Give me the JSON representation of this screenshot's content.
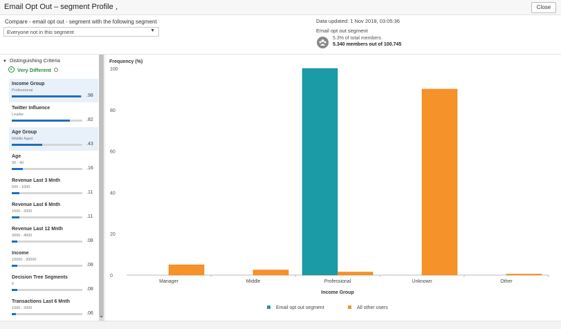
{
  "window": {
    "title": "Email Opt Out – segment Profile",
    "title_mark": ",",
    "close_label": "Close"
  },
  "compare": {
    "label": "Compare - email opt out - segment with the following segment",
    "selected": "Everyone not in this segment"
  },
  "segment_info": {
    "updated": "Data updated:  1 Nov 2018, 03:05:36",
    "name": "Email opt out segment",
    "icon": "group-icon",
    "pct_text": "5.3% of total members",
    "count_text": "5.340 members out of 100.745"
  },
  "criteria_panel": {
    "header": "Distinguishing Criteria",
    "very_different": "Very Different",
    "items": [
      {
        "name": "Income Group",
        "sub": "Professional",
        "score": ".98",
        "value": 0.98,
        "selected": true
      },
      {
        "name": "Twitter Influence",
        "sub": "Leader",
        "score": ".82",
        "value": 0.82,
        "selected": false
      },
      {
        "name": "Age Group",
        "sub": "Middle Aged",
        "score": ".43",
        "value": 0.43,
        "selected": true
      },
      {
        "name": "Age",
        "sub": "30 - 40",
        "score": ".16",
        "value": 0.16,
        "selected": false
      },
      {
        "name": "Revenue Last 3 Mnth",
        "sub": "500 - 1000",
        "score": ".11",
        "value": 0.11,
        "selected": false
      },
      {
        "name": "Revenue Last 6 Mnth",
        "sub": "1000 - 2000",
        "score": ".11",
        "value": 0.11,
        "selected": false
      },
      {
        "name": "Revenue Last 12 Mnth",
        "sub": "3000 - 4000",
        "score": ".08",
        "value": 0.08,
        "selected": false
      },
      {
        "name": "Income",
        "sub": "10000 - 30000",
        "score": ".08",
        "value": 0.08,
        "selected": false
      },
      {
        "name": "Decision Tree Segments",
        "sub": "6",
        "score": ".08",
        "value": 0.08,
        "selected": false
      },
      {
        "name": "Transactions Last 6 Mnth",
        "sub": "1000 - 2000",
        "score": ".06",
        "value": 0.06,
        "selected": false
      }
    ]
  },
  "chart_data": {
    "type": "bar",
    "ylabel": "Frequency (%)",
    "xlabel": "Income Group",
    "ylim": [
      0,
      100
    ],
    "yticks": [
      "0",
      "20",
      "40",
      "60",
      "80",
      "100"
    ],
    "categories": [
      "Manager",
      "Middle",
      "Professional",
      "Unknown",
      "Other"
    ],
    "series": [
      {
        "name": "Email opt out segment",
        "color": "#1a9ba6",
        "values": [
          0,
          0,
          100,
          0,
          0
        ]
      },
      {
        "name": "All other users",
        "color": "#f5922a",
        "values": [
          5,
          2.5,
          1.5,
          90,
          0.5
        ]
      }
    ],
    "grid": false,
    "legend": "bottom"
  }
}
